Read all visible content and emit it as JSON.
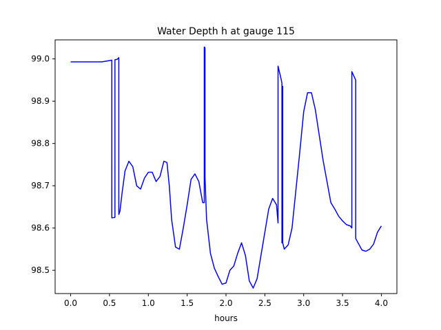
{
  "chart_data": {
    "type": "line",
    "title": "Water Depth h at gauge 115",
    "xlabel": "hours",
    "ylabel": "",
    "xlim": [
      -0.2,
      4.2
    ],
    "ylim": [
      98.445,
      99.045
    ],
    "xticks": [
      0.0,
      0.5,
      1.0,
      1.5,
      2.0,
      2.5,
      3.0,
      3.5,
      4.0
    ],
    "xtick_labels": [
      "0.0",
      "0.5",
      "1.0",
      "1.5",
      "2.0",
      "2.5",
      "3.0",
      "3.5",
      "4.0"
    ],
    "yticks": [
      98.5,
      98.6,
      98.7,
      98.8,
      98.9,
      99.0
    ],
    "ytick_labels": [
      "98.5",
      "98.6",
      "98.7",
      "98.8",
      "98.9",
      "99.0"
    ],
    "grid": false,
    "line_color": "#0000ff",
    "series": [
      {
        "x": [
          0.0,
          0.2,
          0.4,
          0.5,
          0.525,
          0.53,
          0.53,
          0.57,
          0.57,
          0.6,
          0.62,
          0.62,
          0.635,
          0.66,
          0.7,
          0.75,
          0.8,
          0.85,
          0.9,
          0.95,
          1.0,
          1.05,
          1.1,
          1.15,
          1.2,
          1.24,
          1.27,
          1.3,
          1.35,
          1.4,
          1.45,
          1.5,
          1.55,
          1.6,
          1.65,
          1.7,
          1.72,
          1.72,
          1.725,
          1.73,
          1.73,
          1.75,
          1.8,
          1.85,
          1.9,
          1.95,
          2.0,
          2.05,
          2.1,
          2.15,
          2.2,
          2.25,
          2.3,
          2.35,
          2.4,
          2.45,
          2.5,
          2.55,
          2.6,
          2.65,
          2.67,
          2.67,
          2.7,
          2.72,
          2.72,
          2.725,
          2.73,
          2.73,
          2.75,
          2.8,
          2.85,
          2.9,
          2.95,
          3.0,
          3.05,
          3.1,
          3.15,
          3.2,
          3.25,
          3.3,
          3.35,
          3.4,
          3.45,
          3.5,
          3.55,
          3.6,
          3.62,
          3.62,
          3.67,
          3.67,
          3.7,
          3.75,
          3.8,
          3.85,
          3.9,
          3.95,
          4.0
        ],
        "y": [
          98.993,
          98.993,
          98.993,
          98.996,
          98.997,
          98.997,
          98.624,
          98.625,
          98.998,
          98.999,
          99.003,
          98.632,
          98.64,
          98.68,
          98.735,
          98.758,
          98.745,
          98.7,
          98.692,
          98.718,
          98.732,
          98.732,
          98.71,
          98.722,
          98.758,
          98.755,
          98.7,
          98.62,
          98.555,
          98.55,
          98.6,
          98.655,
          98.715,
          98.728,
          98.71,
          98.66,
          98.66,
          99.028,
          99.028,
          99.025,
          98.72,
          98.62,
          98.54,
          98.505,
          98.485,
          98.467,
          98.47,
          98.5,
          98.51,
          98.54,
          98.565,
          98.535,
          98.475,
          98.458,
          98.48,
          98.535,
          98.59,
          98.645,
          98.67,
          98.655,
          98.612,
          98.983,
          98.96,
          98.943,
          98.565,
          98.565,
          98.935,
          98.565,
          98.55,
          98.56,
          98.6,
          98.69,
          98.78,
          98.875,
          98.92,
          98.92,
          98.88,
          98.82,
          98.76,
          98.71,
          98.66,
          98.645,
          98.628,
          98.617,
          98.608,
          98.605,
          98.6,
          98.97,
          98.95,
          98.575,
          98.565,
          98.548,
          98.545,
          98.55,
          98.562,
          98.59,
          98.605
        ]
      }
    ]
  }
}
